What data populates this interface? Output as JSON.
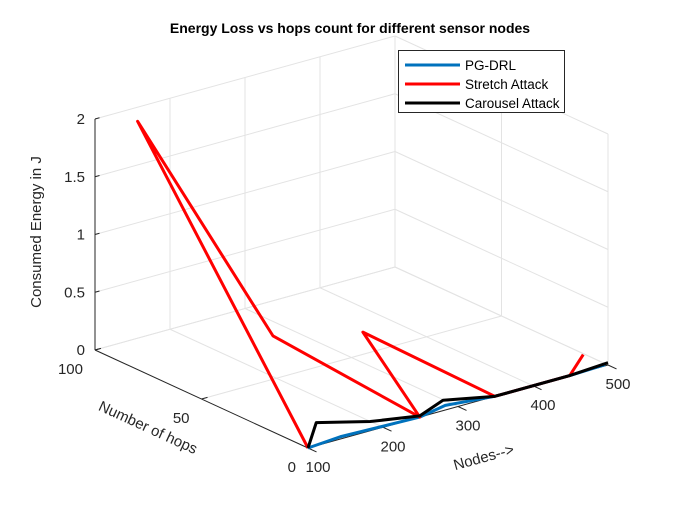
{
  "chart_data": {
    "type": "line3d",
    "title": "Energy Loss vs hops count for different sensor nodes",
    "xlabel": "Nodes-->",
    "ylabel": "Number of hops",
    "zlabel": "Consumed Energy in J",
    "xlim": [
      100,
      500
    ],
    "ylim": [
      0,
      100
    ],
    "zlim": [
      0,
      2
    ],
    "xticks": [
      "100",
      "200",
      "300",
      "400",
      "500"
    ],
    "yticks": [
      "0",
      "50",
      "100"
    ],
    "zticks": [
      "0",
      "0.5",
      "1",
      "1.5",
      "2"
    ],
    "grid": true,
    "legend_position": "top-right",
    "series": [
      {
        "name": "PG-DRL",
        "color": "#0072BD",
        "points": [
          [
            100,
            0,
            0
          ],
          [
            143,
            0,
            0.02
          ],
          [
            249,
            0,
            0
          ],
          [
            283,
            0,
            0.04
          ],
          [
            349,
            0,
            0
          ],
          [
            449,
            0,
            0
          ],
          [
            496,
            0,
            0.01
          ]
        ]
      },
      {
        "name": "Stretch Attack",
        "color": "#FF0000",
        "points": [
          [
            100,
            0,
            0
          ],
          [
            100,
            80,
            2.15
          ],
          [
            167,
            40,
            0.51
          ],
          [
            249,
            0,
            0
          ],
          [
            230,
            20,
            0.6
          ],
          [
            349,
            0,
            0
          ],
          [
            449,
            0,
            0
          ],
          [
            467,
            0,
            0.15
          ]
        ]
      },
      {
        "name": "Carousel Attack",
        "color": "#000000",
        "points": [
          [
            100,
            0,
            0
          ],
          [
            111,
            0,
            0.2
          ],
          [
            183,
            0,
            0.08
          ],
          [
            249,
            0,
            0.01
          ],
          [
            280,
            0,
            0.09
          ],
          [
            349,
            0,
            0
          ],
          [
            449,
            0,
            0
          ],
          [
            500,
            0,
            0.02
          ]
        ]
      }
    ]
  }
}
